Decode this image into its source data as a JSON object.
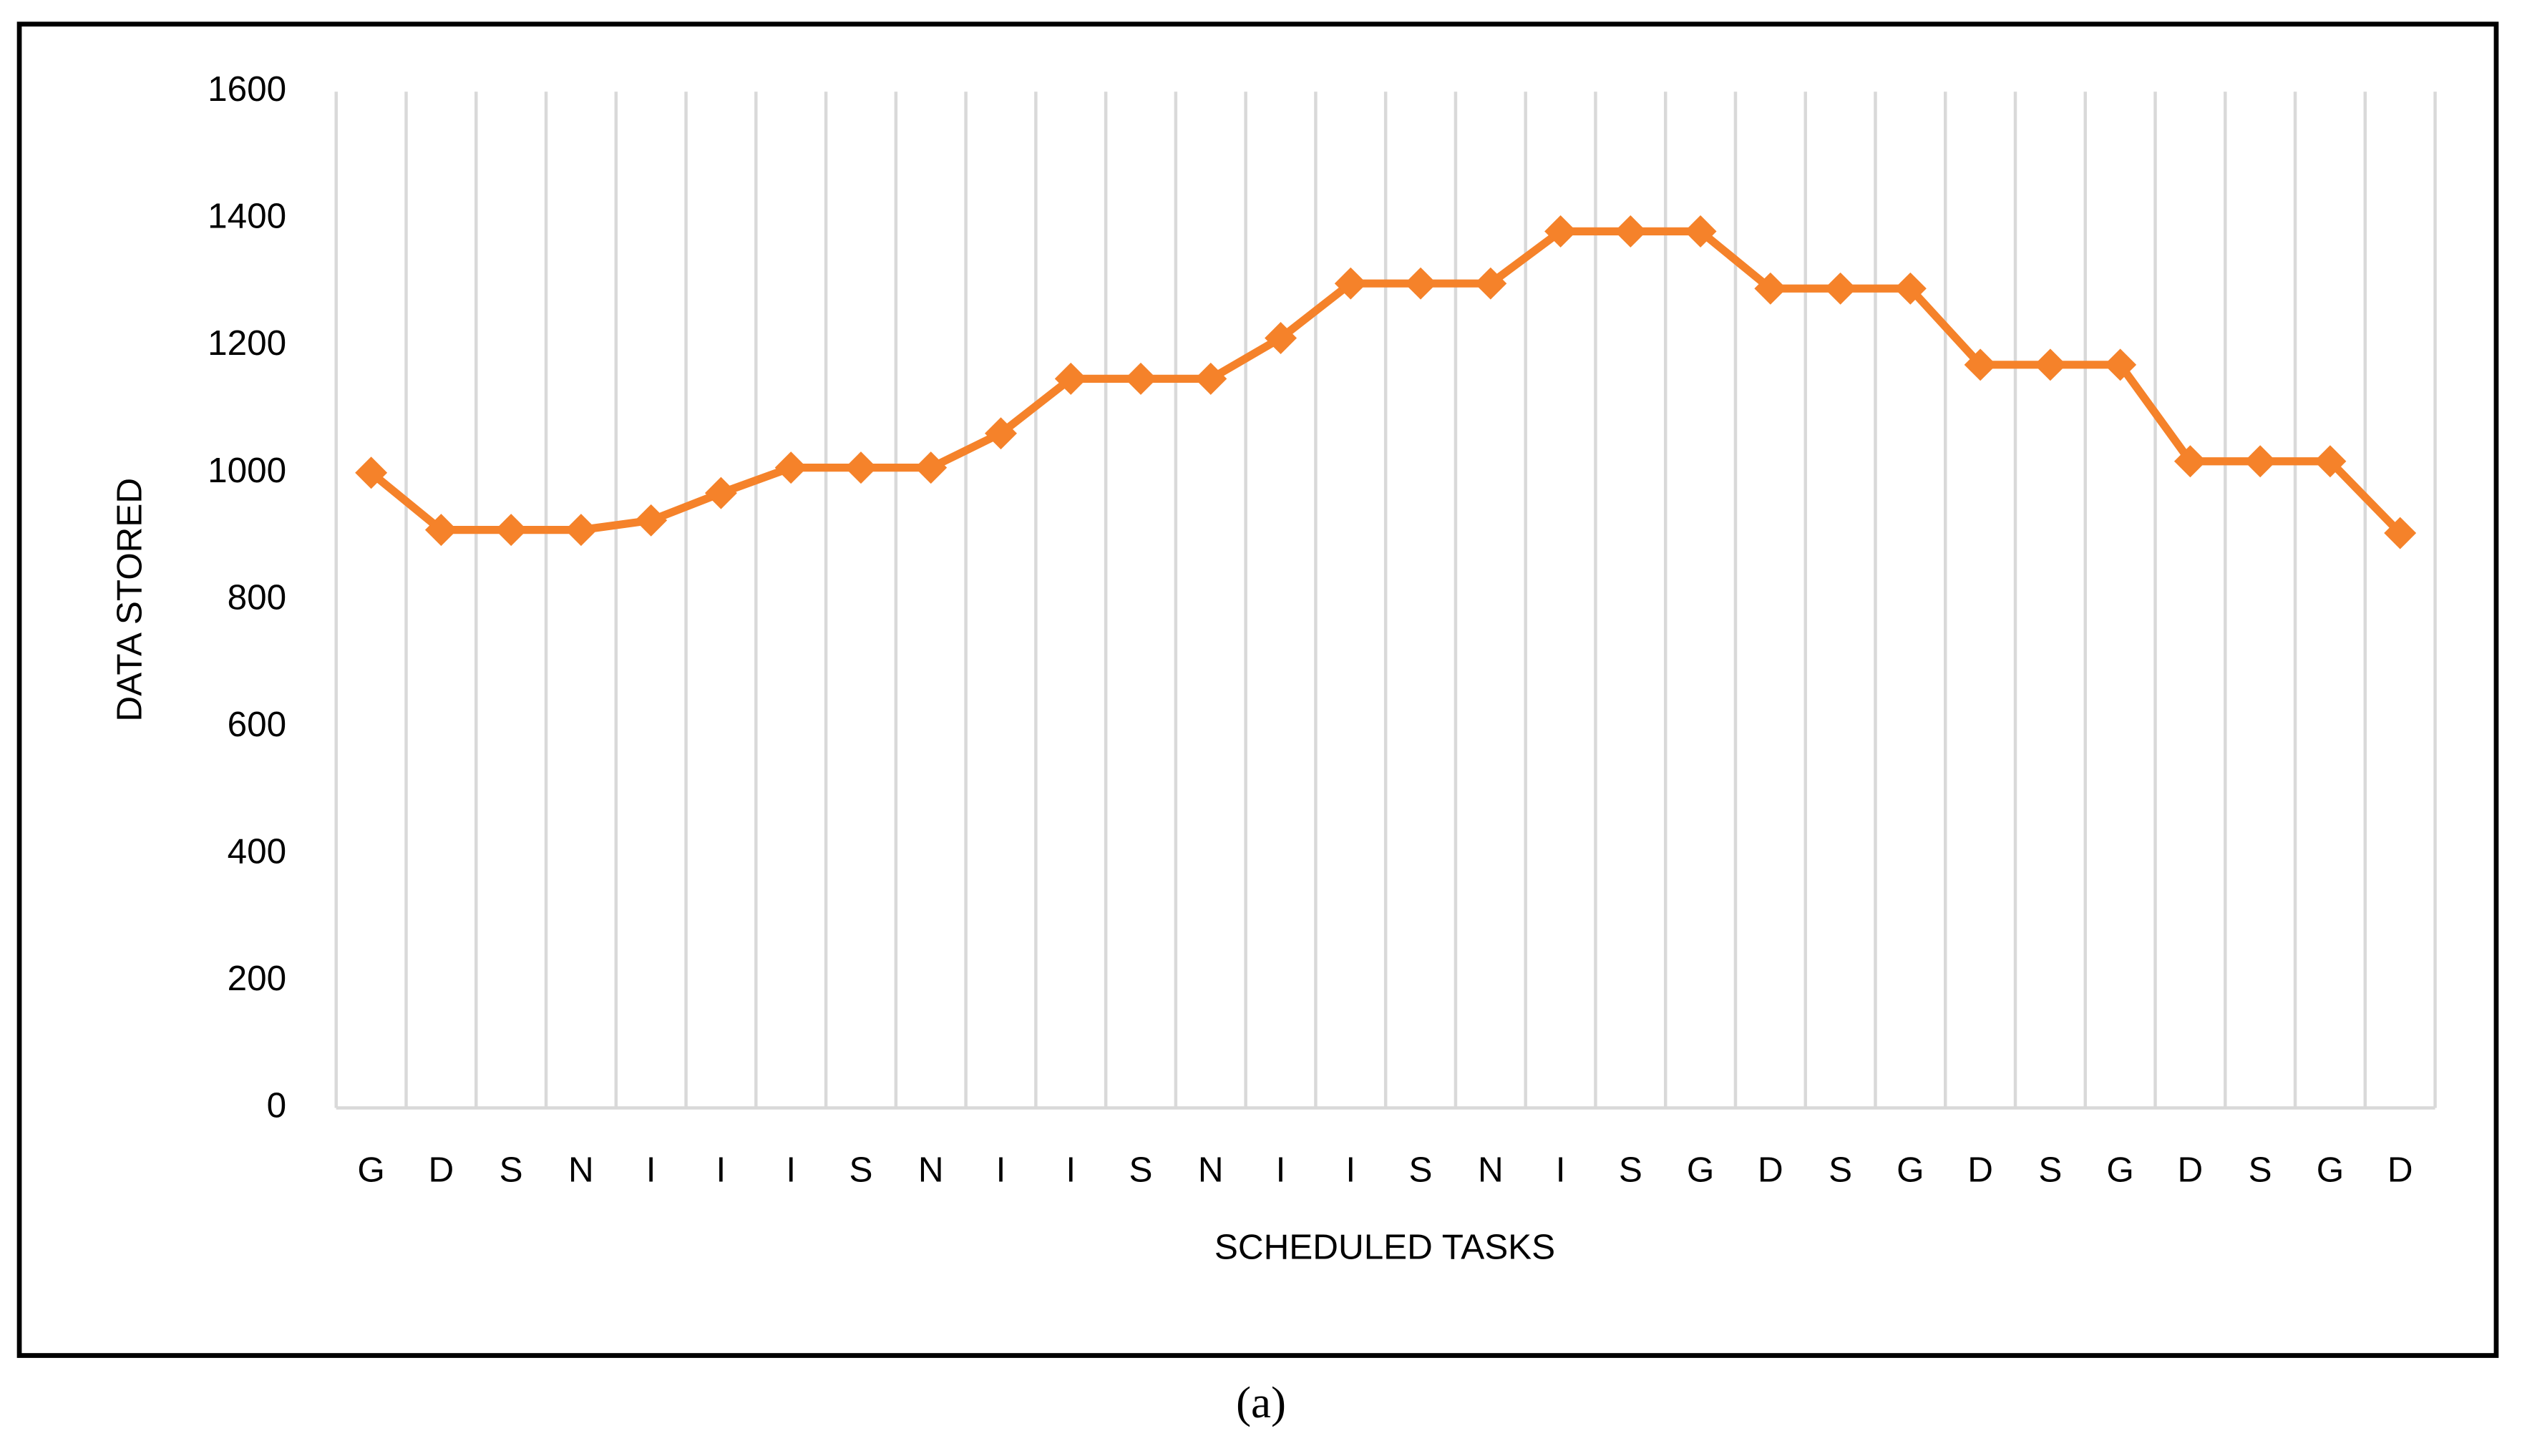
{
  "chart_data": {
    "type": "line",
    "x_label": "SCHEDULED TASKS",
    "y_label": "DATA STORED",
    "caption": "(a)",
    "categories": [
      "G",
      "D",
      "S",
      "N",
      "I",
      "I",
      "I",
      "S",
      "N",
      "I",
      "I",
      "S",
      "N",
      "I",
      "I",
      "S",
      "N",
      "I",
      "S",
      "G",
      "D",
      "S",
      "G",
      "D",
      "S",
      "G",
      "D",
      "S",
      "G",
      "D"
    ],
    "series": [
      {
        "name": "Data stored",
        "color": "#f5822a",
        "values": [
          1000,
          910,
          910,
          910,
          925,
          968,
          1008,
          1008,
          1008,
          1062,
          1148,
          1148,
          1148,
          1212,
          1298,
          1298,
          1298,
          1380,
          1380,
          1380,
          1290,
          1290,
          1290,
          1170,
          1170,
          1170,
          1018,
          1018,
          1018,
          905
        ]
      }
    ],
    "ylim": [
      0,
      1600
    ],
    "yticks": [
      0,
      200,
      400,
      600,
      800,
      1000,
      1200,
      1400,
      1600
    ],
    "grid": true
  }
}
